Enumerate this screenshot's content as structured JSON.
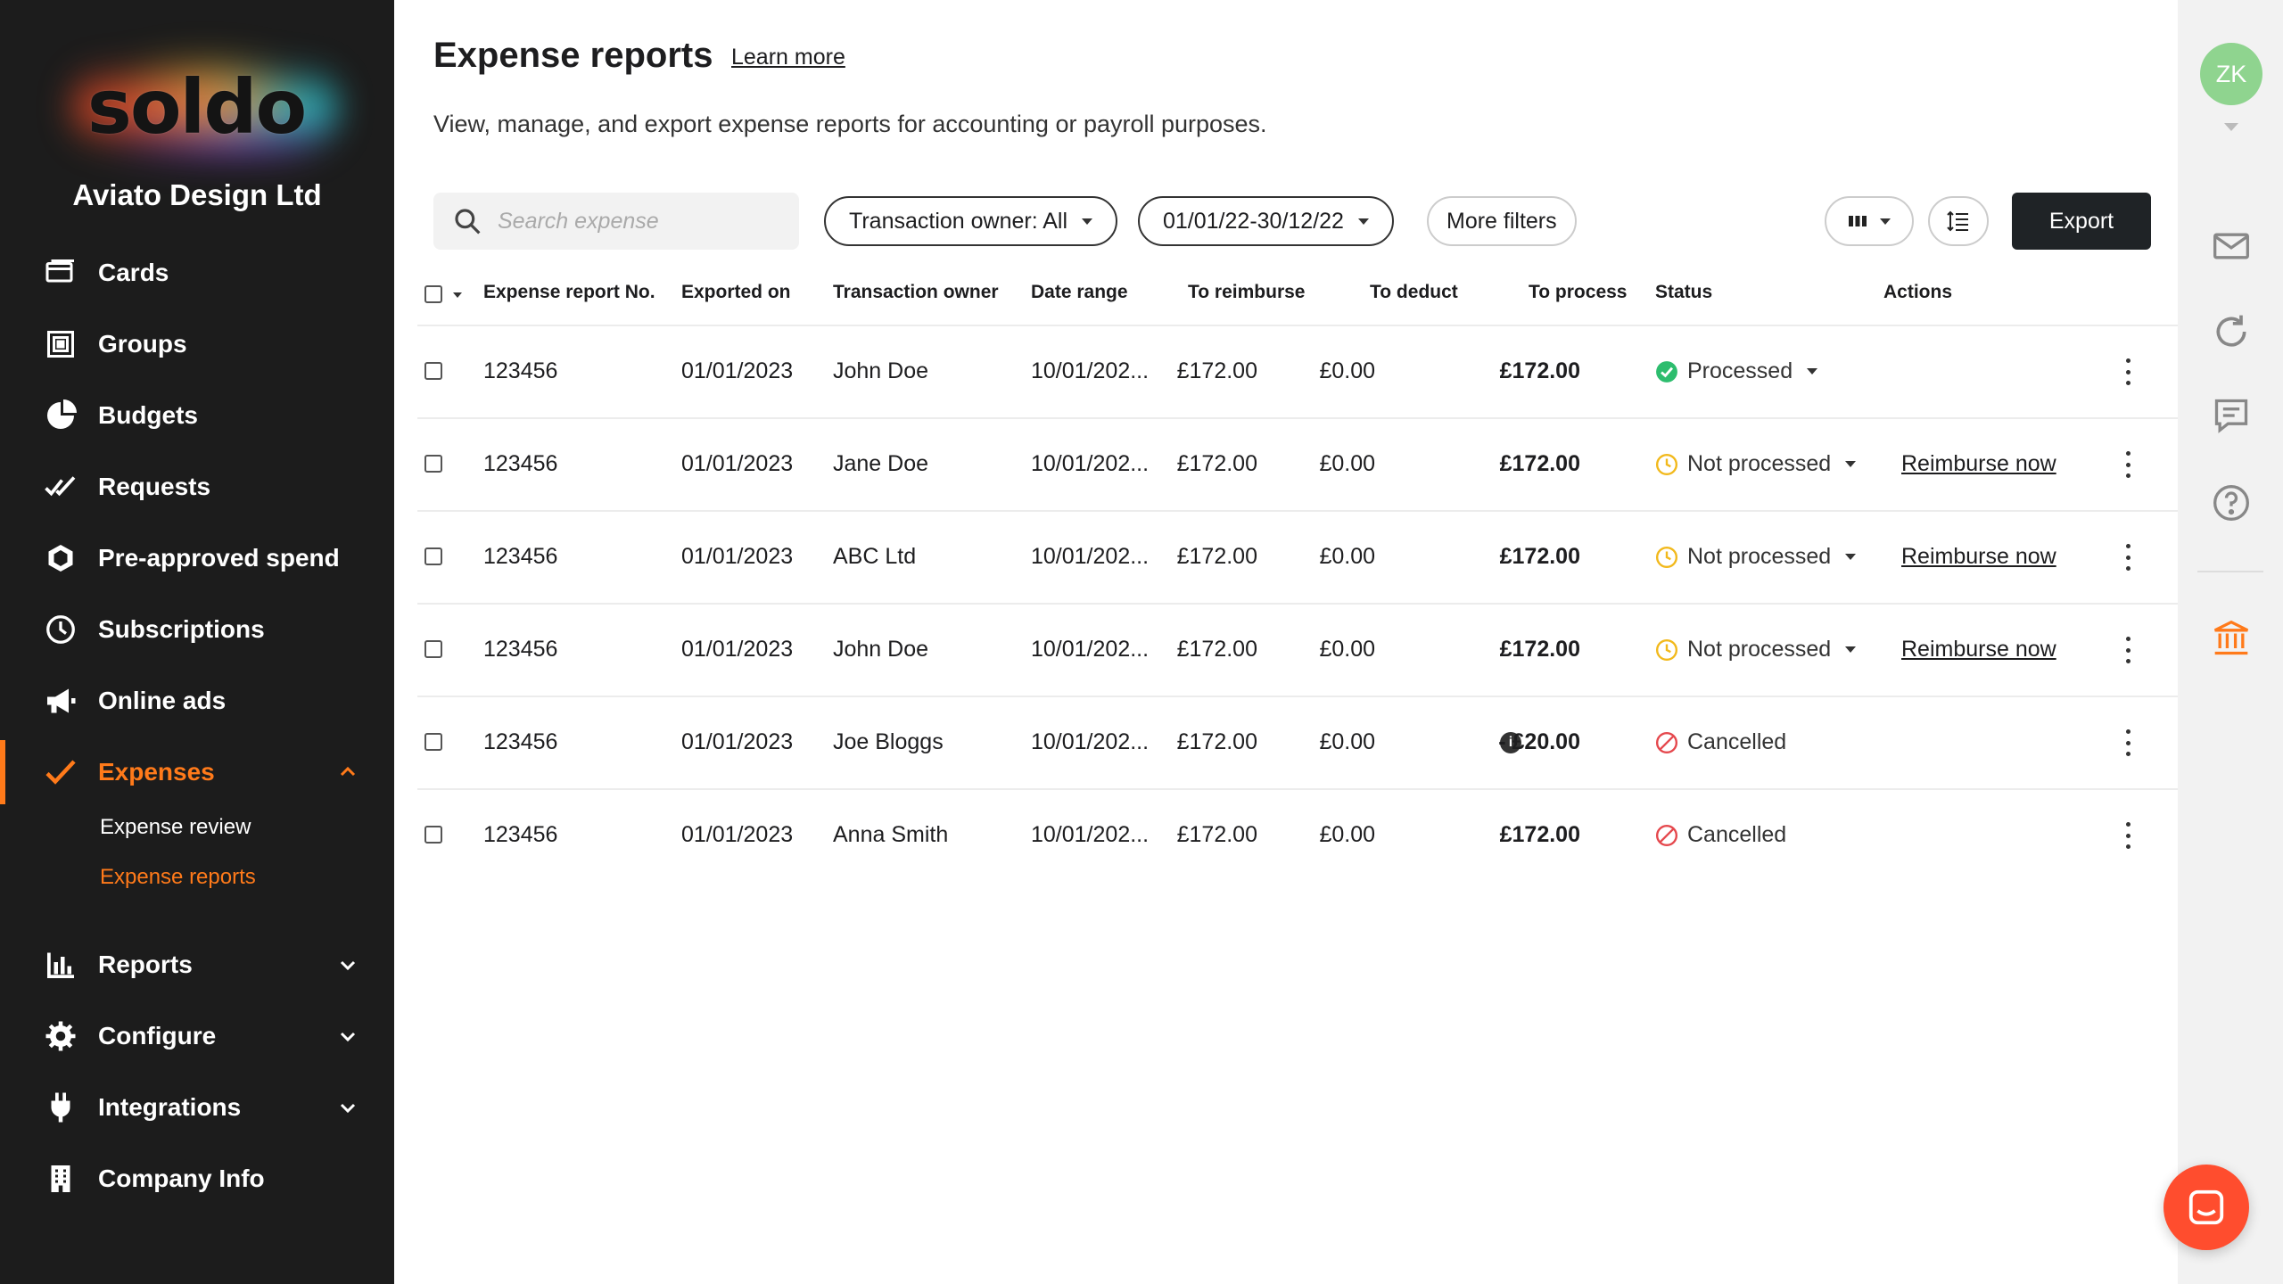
{
  "brand": {
    "logo_text": "soldo",
    "company": "Aviato Design Ltd"
  },
  "sidebar": {
    "items": [
      {
        "label": "Cards",
        "icon": "cards-icon"
      },
      {
        "label": "Groups",
        "icon": "groups-icon"
      },
      {
        "label": "Budgets",
        "icon": "budgets-icon"
      },
      {
        "label": "Requests",
        "icon": "requests-icon"
      },
      {
        "label": "Pre-approved spend",
        "icon": "pre-approved-icon"
      },
      {
        "label": "Subscriptions",
        "icon": "subscriptions-icon"
      },
      {
        "label": "Online ads",
        "icon": "megaphone-icon"
      },
      {
        "label": "Expenses",
        "icon": "expenses-check-icon"
      },
      {
        "label": "Reports",
        "icon": "reports-chart-icon"
      },
      {
        "label": "Configure",
        "icon": "gear-icon"
      },
      {
        "label": "Integrations",
        "icon": "plug-icon"
      },
      {
        "label": "Company Info",
        "icon": "building-icon"
      }
    ],
    "sub_items": [
      {
        "label": "Expense review"
      },
      {
        "label": "Expense reports"
      }
    ]
  },
  "header": {
    "title": "Expense reports",
    "learn_more": "Learn more",
    "subtitle": "View, manage, and export expense reports for accounting or payroll purposes."
  },
  "toolbar": {
    "search_placeholder": "Search expense",
    "owner_filter": "Transaction owner: All",
    "date_filter": "01/01/22-30/12/22",
    "more_filters": "More filters",
    "export": "Export"
  },
  "table": {
    "columns": [
      "Expense report No.",
      "Exported on",
      "Transaction owner",
      "Date range",
      "To reimburse",
      "To deduct",
      "To process",
      "Status",
      "Actions"
    ],
    "rows": [
      {
        "no": "123456",
        "exported": "01/01/2023",
        "owner": "John Doe",
        "range": "10/01/202...",
        "reimburse": "£172.00",
        "deduct": "£0.00",
        "process": "£172.00",
        "status": "Processed",
        "status_type": "processed",
        "action": "",
        "info": false
      },
      {
        "no": "123456",
        "exported": "01/01/2023",
        "owner": "Jane Doe",
        "range": "10/01/202...",
        "reimburse": "£172.00",
        "deduct": "£0.00",
        "process": "£172.00",
        "status": "Not processed",
        "status_type": "pending",
        "action": "Reimburse now",
        "info": false
      },
      {
        "no": "123456",
        "exported": "01/01/2023",
        "owner": "ABC Ltd",
        "range": "10/01/202...",
        "reimburse": "£172.00",
        "deduct": "£0.00",
        "process": "£172.00",
        "status": "Not processed",
        "status_type": "pending",
        "action": "Reimburse now",
        "info": false
      },
      {
        "no": "123456",
        "exported": "01/01/2023",
        "owner": "John Doe",
        "range": "10/01/202...",
        "reimburse": "£172.00",
        "deduct": "£0.00",
        "process": "£172.00",
        "status": "Not processed",
        "status_type": "pending",
        "action": "Reimburse now",
        "info": false
      },
      {
        "no": "123456",
        "exported": "01/01/2023",
        "owner": "Joe Bloggs",
        "range": "10/01/202...",
        "reimburse": "£172.00",
        "deduct": "£0.00",
        "process": "- £20.00",
        "status": "Cancelled",
        "status_type": "cancelled",
        "action": "",
        "info": true
      },
      {
        "no": "123456",
        "exported": "01/01/2023",
        "owner": "Anna Smith",
        "range": "10/01/202...",
        "reimburse": "£172.00",
        "deduct": "£0.00",
        "process": "£172.00",
        "status": "Cancelled",
        "status_type": "cancelled",
        "action": "",
        "info": false
      }
    ]
  },
  "rail": {
    "avatar_initials": "ZK",
    "avatar_color": "#8fd48f"
  },
  "colors": {
    "accent": "#ff7a1a",
    "processed": "#2dbd6e",
    "pending": "#f2b91c",
    "cancelled": "#e5484d",
    "fab": "#ff4d2e"
  }
}
